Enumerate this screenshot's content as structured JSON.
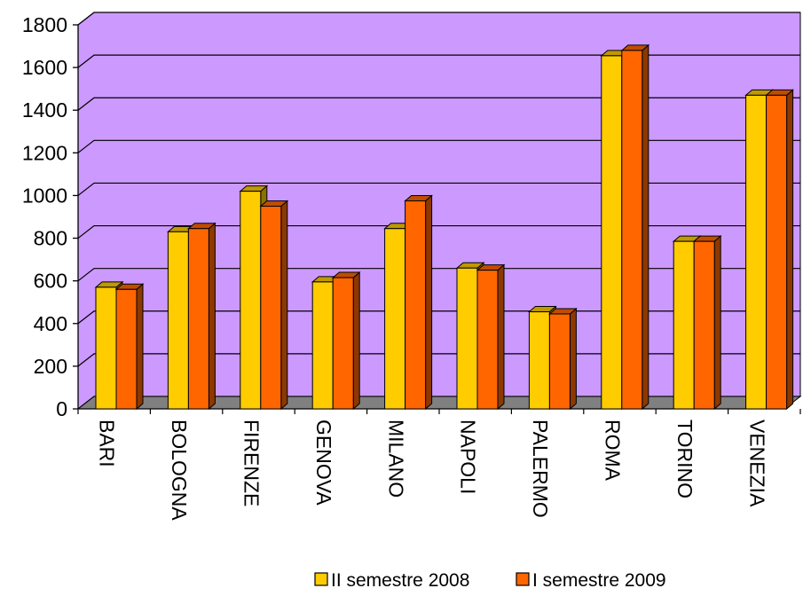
{
  "chart_data": {
    "type": "bar",
    "title": "",
    "xlabel": "",
    "ylabel": "",
    "ylim": [
      0,
      1800
    ],
    "ytick_step": 200,
    "yticks": [
      "0",
      "200",
      "400",
      "600",
      "800",
      "1000",
      "1200",
      "1400",
      "1600",
      "1800"
    ],
    "categories": [
      "BARI",
      "BOLOGNA",
      "FIRENZE",
      "GENOVA",
      "MILANO",
      "NAPOLI",
      "PALERMO",
      "ROMA",
      "TORINO",
      "VENEZIA"
    ],
    "series": [
      {
        "name": "II semestre 2008",
        "color": "#FFCC00",
        "values": [
          570,
          830,
          1020,
          595,
          845,
          660,
          455,
          1655,
          785,
          1470
        ]
      },
      {
        "name": "I semestre 2009",
        "color": "#FF6600",
        "values": [
          560,
          845,
          950,
          615,
          975,
          650,
          445,
          1680,
          785,
          1470
        ]
      }
    ],
    "grid": true,
    "legend": "bottom",
    "style": {
      "wall_color": "#CC99FF",
      "floor_color": "#808080",
      "three_d": true
    }
  }
}
